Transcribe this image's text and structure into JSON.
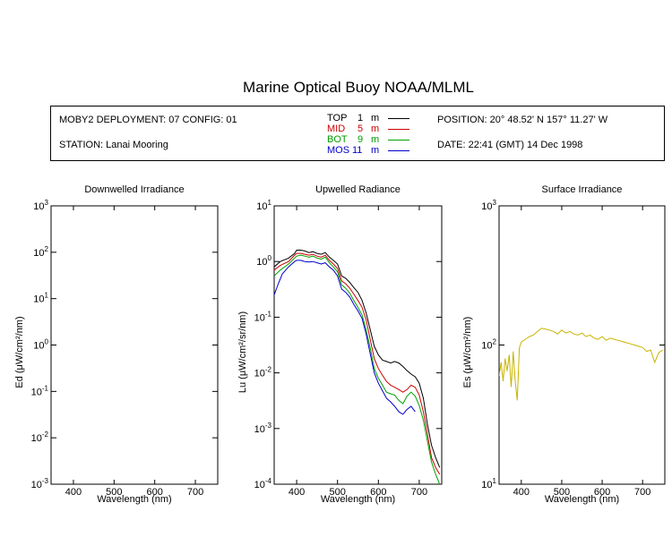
{
  "header": {
    "title": "Marine Optical Buoy NOAA/MLML"
  },
  "info": {
    "deployment": "MOBY2 DEPLOYMENT: 07 CONFIG: 01",
    "station": "STATION: Lanai Mooring",
    "position": "POSITION: 20° 48.52' N   157° 11.27' W",
    "date": "DATE: 22:41 (GMT) 14 Dec 1998",
    "legend": [
      {
        "name": "TOP",
        "depth": "1",
        "unit": "m",
        "color": "#000000"
      },
      {
        "name": "MID",
        "depth": "5",
        "unit": "m",
        "color": "#cc0000"
      },
      {
        "name": "BOT",
        "depth": "9",
        "unit": "m",
        "color": "#00a000"
      },
      {
        "name": "MOS",
        "depth": "11",
        "unit": "m",
        "color": "#0000cc"
      }
    ]
  },
  "chart_data": [
    {
      "type": "line",
      "title": "Downwelled Irradiance",
      "xlabel": "Wavelength (nm)",
      "ylabel": "Ed  (μW/cm²/nm)",
      "scale": "log",
      "xlim": [
        345,
        755
      ],
      "ylim": [
        0.001,
        1000
      ],
      "xticks": [
        400,
        500,
        600,
        700
      ],
      "yticks": [
        {
          "base": "10",
          "exp": "-3"
        },
        {
          "base": "10",
          "exp": "-2"
        },
        {
          "base": "10",
          "exp": "-1"
        },
        {
          "base": "10",
          "exp": "0"
        },
        {
          "base": "10",
          "exp": "1"
        },
        {
          "base": "10",
          "exp": "2"
        },
        {
          "base": "10",
          "exp": "3"
        }
      ],
      "series": []
    },
    {
      "type": "line",
      "title": "Upwelled Radiance",
      "xlabel": "Wavelength (nm)",
      "ylabel": "Lu  (μW/cm²/sr/nm)",
      "scale": "log",
      "xlim": [
        345,
        755
      ],
      "ylim": [
        0.0001,
        10
      ],
      "xticks": [
        400,
        500,
        600,
        700
      ],
      "yticks": [
        {
          "base": "10",
          "exp": "-4"
        },
        {
          "base": "10",
          "exp": "-3"
        },
        {
          "base": "10",
          "exp": "-2"
        },
        {
          "base": "10",
          "exp": "-1"
        },
        {
          "base": "10",
          "exp": "0"
        },
        {
          "base": "10",
          "exp": "1"
        }
      ],
      "series": [
        {
          "name": "TOP",
          "color": "#000000",
          "x": [
            345,
            360,
            380,
            395,
            400,
            410,
            420,
            430,
            440,
            450,
            460,
            470,
            480,
            490,
            500,
            510,
            520,
            530,
            540,
            550,
            560,
            570,
            580,
            590,
            600,
            610,
            620,
            630,
            640,
            650,
            660,
            670,
            680,
            690,
            700,
            710,
            720,
            730,
            740,
            750
          ],
          "y": [
            0.8,
            1.0,
            1.15,
            1.4,
            1.6,
            1.6,
            1.55,
            1.45,
            1.5,
            1.4,
            1.35,
            1.45,
            1.2,
            1.05,
            0.9,
            0.55,
            0.5,
            0.42,
            0.34,
            0.28,
            0.2,
            0.12,
            0.06,
            0.03,
            0.021,
            0.017,
            0.016,
            0.015,
            0.016,
            0.015,
            0.013,
            0.011,
            0.0095,
            0.0085,
            0.0065,
            0.0035,
            0.0012,
            0.0005,
            0.0003,
            0.0002
          ]
        },
        {
          "name": "MID",
          "color": "#cc0000",
          "x": [
            345,
            360,
            380,
            395,
            400,
            410,
            420,
            430,
            440,
            450,
            460,
            470,
            480,
            490,
            500,
            510,
            520,
            530,
            540,
            550,
            560,
            570,
            580,
            590,
            600,
            610,
            620,
            630,
            640,
            650,
            660,
            670,
            680,
            690,
            700,
            710,
            720,
            730,
            740,
            750
          ],
          "y": [
            0.7,
            0.85,
            1.0,
            1.3,
            1.4,
            1.4,
            1.35,
            1.3,
            1.35,
            1.25,
            1.2,
            1.3,
            1.05,
            0.9,
            0.75,
            0.45,
            0.4,
            0.33,
            0.26,
            0.2,
            0.15,
            0.09,
            0.04,
            0.018,
            0.012,
            0.009,
            0.007,
            0.006,
            0.0055,
            0.005,
            0.0045,
            0.005,
            0.006,
            0.0055,
            0.004,
            0.002,
            0.0008,
            0.0003,
            0.0002,
            0.00015
          ]
        },
        {
          "name": "BOT",
          "color": "#00a000",
          "x": [
            345,
            360,
            380,
            395,
            400,
            410,
            420,
            430,
            440,
            450,
            460,
            470,
            480,
            490,
            500,
            510,
            520,
            530,
            540,
            550,
            560,
            570,
            580,
            590,
            600,
            610,
            620,
            630,
            640,
            650,
            660,
            670,
            680,
            690,
            700,
            710,
            720,
            730,
            740,
            750
          ],
          "y": [
            0.55,
            0.7,
            0.9,
            1.15,
            1.25,
            1.3,
            1.25,
            1.2,
            1.25,
            1.15,
            1.1,
            1.2,
            0.95,
            0.8,
            0.65,
            0.38,
            0.33,
            0.27,
            0.2,
            0.15,
            0.11,
            0.06,
            0.028,
            0.012,
            0.008,
            0.006,
            0.0045,
            0.0042,
            0.004,
            0.0032,
            0.0028,
            0.0038,
            0.0045,
            0.0038,
            0.0026,
            0.0014,
            0.0006,
            0.00025,
            0.00015,
            0.0001
          ]
        },
        {
          "name": "MOS",
          "color": "#0000cc",
          "x": [
            345,
            355,
            365,
            380,
            395,
            400,
            410,
            420,
            430,
            440,
            450,
            460,
            470,
            480,
            490,
            500,
            510,
            520,
            530,
            540,
            550,
            560,
            570,
            580,
            590,
            600,
            620,
            630,
            640,
            650,
            660,
            670,
            680,
            690
          ],
          "y": [
            0.25,
            0.4,
            0.6,
            0.8,
            1.0,
            1.05,
            1.05,
            1.0,
            0.98,
            1.0,
            0.95,
            0.9,
            0.95,
            0.8,
            0.7,
            0.55,
            0.32,
            0.28,
            0.23,
            0.17,
            0.13,
            0.095,
            0.05,
            0.022,
            0.01,
            0.0065,
            0.0035,
            0.003,
            0.0025,
            0.002,
            0.0018,
            0.0022,
            0.0025,
            0.002
          ]
        }
      ]
    },
    {
      "type": "line",
      "title": "Surface Irradiance",
      "xlabel": "Wavelength (nm)",
      "ylabel": "Es  (μW/cm²/nm)",
      "scale": "log",
      "xlim": [
        345,
        755
      ],
      "ylim": [
        10,
        1000
      ],
      "xticks": [
        400,
        500,
        600,
        700
      ],
      "yticks": [
        {
          "base": "10",
          "exp": "1"
        },
        {
          "base": "10",
          "exp": "2"
        },
        {
          "base": "10",
          "exp": "3"
        }
      ],
      "series": [
        {
          "name": "Es",
          "color": "#c8b400",
          "x": [
            345,
            350,
            355,
            360,
            365,
            370,
            375,
            380,
            385,
            390,
            395,
            400,
            410,
            420,
            430,
            440,
            450,
            460,
            470,
            480,
            490,
            500,
            510,
            520,
            530,
            540,
            550,
            560,
            570,
            580,
            590,
            600,
            610,
            620,
            630,
            640,
            650,
            660,
            670,
            680,
            690,
            700,
            710,
            720,
            730,
            740,
            750
          ],
          "y": [
            60,
            75,
            55,
            80,
            65,
            85,
            50,
            90,
            55,
            40,
            95,
            105,
            110,
            115,
            118,
            125,
            132,
            130,
            128,
            125,
            120,
            128,
            122,
            125,
            120,
            118,
            122,
            115,
            118,
            112,
            110,
            115,
            108,
            112,
            110,
            108,
            106,
            104,
            102,
            100,
            98,
            96,
            90,
            92,
            75,
            88,
            92
          ]
        }
      ]
    }
  ]
}
